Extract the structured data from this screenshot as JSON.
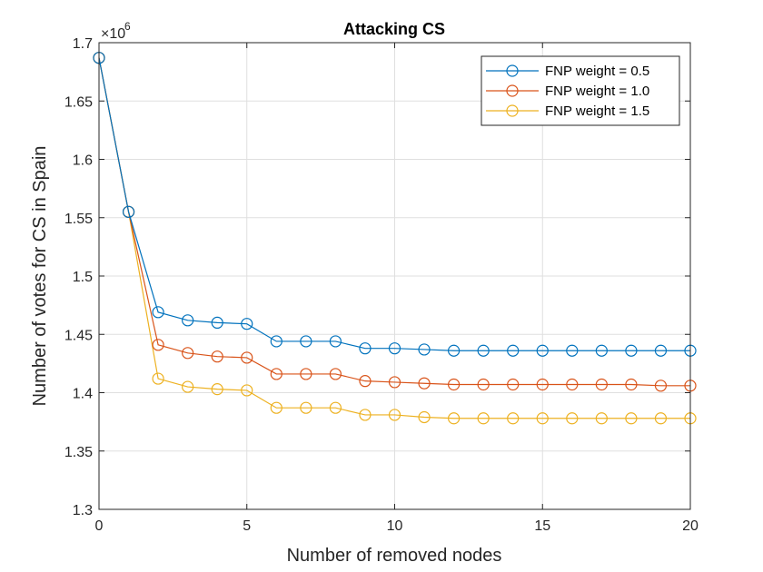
{
  "chart_data": {
    "type": "line",
    "title": "Attacking CS",
    "xlabel": "Number of removed nodes",
    "ylabel": "Number of votes for CS in Spain",
    "y_multiplier_label": "×10",
    "y_multiplier_exponent": "6",
    "xlim": [
      0,
      20
    ],
    "ylim": [
      1.3,
      1.7
    ],
    "xticks": [
      0,
      5,
      10,
      15,
      20
    ],
    "yticks": [
      1.3,
      1.35,
      1.4,
      1.45,
      1.5,
      1.55,
      1.6,
      1.65,
      1.7
    ],
    "xtick_labels": [
      "0",
      "5",
      "10",
      "15",
      "20"
    ],
    "ytick_labels": [
      "1.3",
      "1.35",
      "1.4",
      "1.45",
      "1.5",
      "1.55",
      "1.6",
      "1.65",
      "1.7"
    ],
    "grid": true,
    "legend_position": "top-right",
    "x": [
      0,
      1,
      2,
      3,
      4,
      5,
      6,
      7,
      8,
      9,
      10,
      11,
      12,
      13,
      14,
      15,
      16,
      17,
      18,
      19,
      20
    ],
    "series": [
      {
        "name": "FNP weight = 0.5",
        "color": "#0072BD",
        "values": [
          1.687,
          1.555,
          1.469,
          1.462,
          1.46,
          1.459,
          1.444,
          1.444,
          1.444,
          1.438,
          1.438,
          1.437,
          1.436,
          1.436,
          1.436,
          1.436,
          1.436,
          1.436,
          1.436,
          1.436,
          1.436
        ]
      },
      {
        "name": "FNP weight = 1.0",
        "color": "#D95319",
        "values": [
          1.687,
          1.555,
          1.441,
          1.434,
          1.431,
          1.43,
          1.416,
          1.416,
          1.416,
          1.41,
          1.409,
          1.408,
          1.407,
          1.407,
          1.407,
          1.407,
          1.407,
          1.407,
          1.407,
          1.406,
          1.406
        ]
      },
      {
        "name": "FNP weight = 1.5",
        "color": "#EDB120",
        "values": [
          1.687,
          1.555,
          1.412,
          1.405,
          1.403,
          1.402,
          1.387,
          1.387,
          1.387,
          1.381,
          1.381,
          1.379,
          1.378,
          1.378,
          1.378,
          1.378,
          1.378,
          1.378,
          1.378,
          1.378,
          1.378
        ]
      }
    ]
  }
}
